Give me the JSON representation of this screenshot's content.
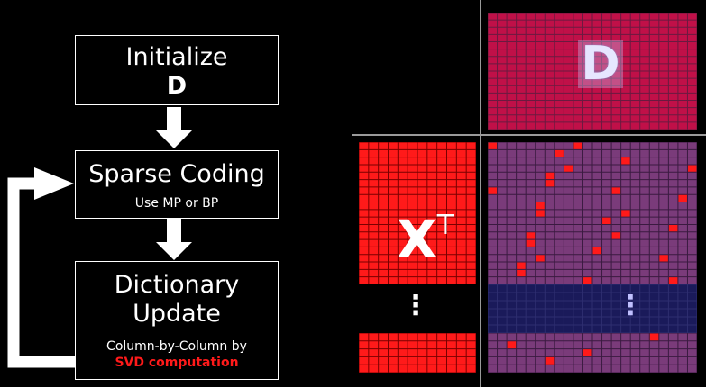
{
  "flow": {
    "init": {
      "title": "Initialize",
      "symbol": "D"
    },
    "sparse": {
      "title": "Sparse Coding",
      "subtitle": "Use MP or BP"
    },
    "update": {
      "title_line1": "Dictionary",
      "title_line2": "Update",
      "subtitle": "Column-by-Column by",
      "highlight": "SVD computation"
    }
  },
  "matrices": {
    "dictionary_label": "D",
    "transpose_label": "X",
    "transpose_superscript": "T",
    "ellipsis": "⋮"
  },
  "colors": {
    "red": "#ff1a1a",
    "magenta": "#c01048",
    "muted_magenta": "#7a3b7a",
    "navy": "#1a1a5a",
    "highlight_text": "#ff1a1a"
  }
}
